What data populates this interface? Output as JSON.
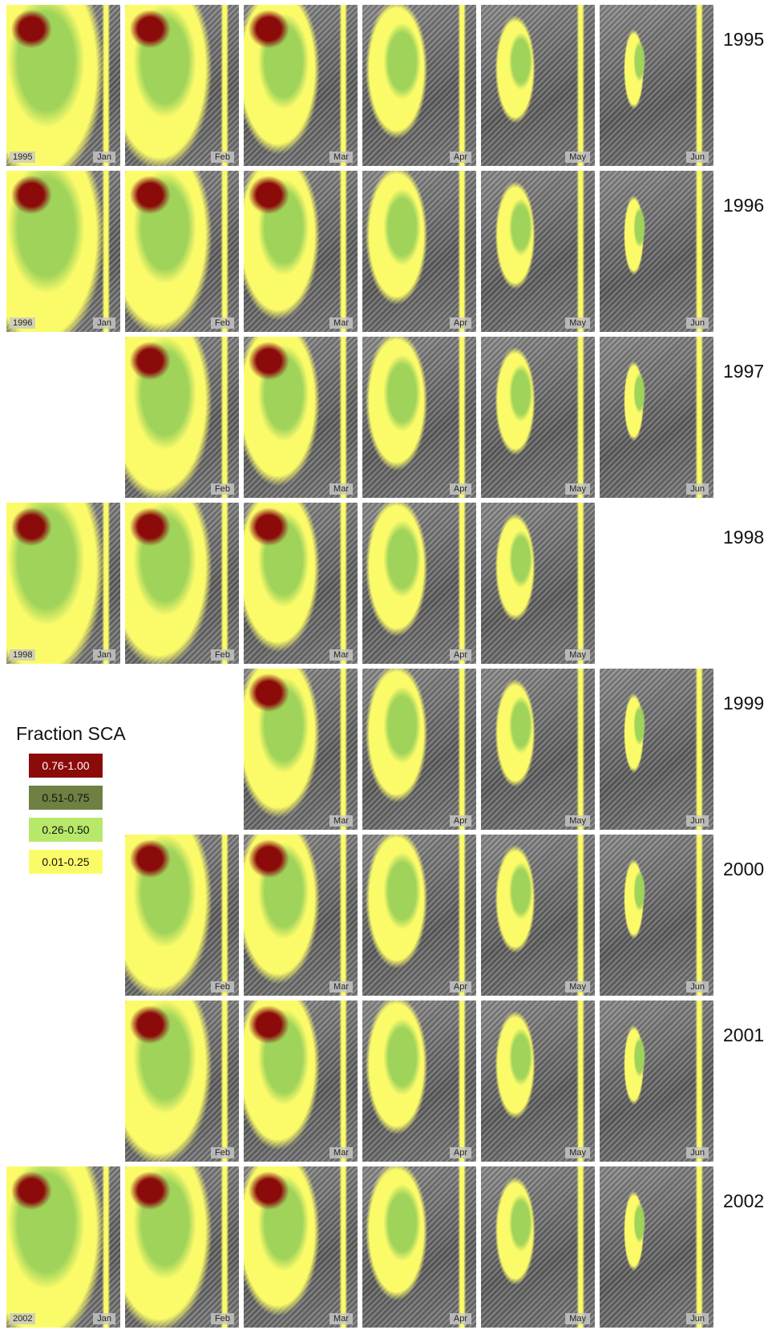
{
  "rows": [
    {
      "year": "1995",
      "panels": [
        {
          "month": "Jan",
          "year_label": "1995"
        },
        {
          "month": "Feb"
        },
        {
          "month": "Mar"
        },
        {
          "month": "Apr"
        },
        {
          "month": "May"
        },
        {
          "month": "Jun"
        }
      ]
    },
    {
      "year": "1996",
      "panels": [
        {
          "month": "Jan",
          "year_label": "1996"
        },
        {
          "month": "Feb"
        },
        {
          "month": "Mar"
        },
        {
          "month": "Apr"
        },
        {
          "month": "May"
        },
        {
          "month": "Jun"
        }
      ]
    },
    {
      "year": "1997",
      "panels": [
        null,
        {
          "month": "Feb"
        },
        {
          "month": "Mar"
        },
        {
          "month": "Apr"
        },
        {
          "month": "May"
        },
        {
          "month": "Jun"
        }
      ]
    },
    {
      "year": "1998",
      "panels": [
        {
          "month": "Jan",
          "year_label": "1998"
        },
        {
          "month": "Feb"
        },
        {
          "month": "Mar"
        },
        {
          "month": "Apr"
        },
        {
          "month": "May"
        },
        null
      ]
    },
    {
      "year": "1999",
      "panels": [
        null,
        null,
        {
          "month": "Mar"
        },
        {
          "month": "Apr"
        },
        {
          "month": "May"
        },
        {
          "month": "Jun"
        }
      ]
    },
    {
      "year": "2000",
      "panels": [
        null,
        {
          "month": "Feb"
        },
        {
          "month": "Mar"
        },
        {
          "month": "Apr"
        },
        {
          "month": "May"
        },
        {
          "month": "Jun"
        }
      ]
    },
    {
      "year": "2001",
      "panels": [
        null,
        {
          "month": "Feb"
        },
        {
          "month": "Mar"
        },
        {
          "month": "Apr"
        },
        {
          "month": "May"
        },
        {
          "month": "Jun"
        }
      ]
    },
    {
      "year": "2002",
      "panels": [
        {
          "month": "Jan",
          "year_label": "2002"
        },
        {
          "month": "Feb"
        },
        {
          "month": "Mar"
        },
        {
          "month": "Apr"
        },
        {
          "month": "May"
        },
        {
          "month": "Jun"
        }
      ]
    }
  ],
  "legend": {
    "title": "Fraction SCA",
    "items": [
      {
        "label": "0.76-1.00",
        "color": "#8b0a0a"
      },
      {
        "label": "0.51-0.75",
        "color": "#6e8042"
      },
      {
        "label": "0.26-0.50",
        "color": "#b8e86a"
      },
      {
        "label": "0.01-0.25",
        "color": "#fbfb6a"
      }
    ]
  }
}
